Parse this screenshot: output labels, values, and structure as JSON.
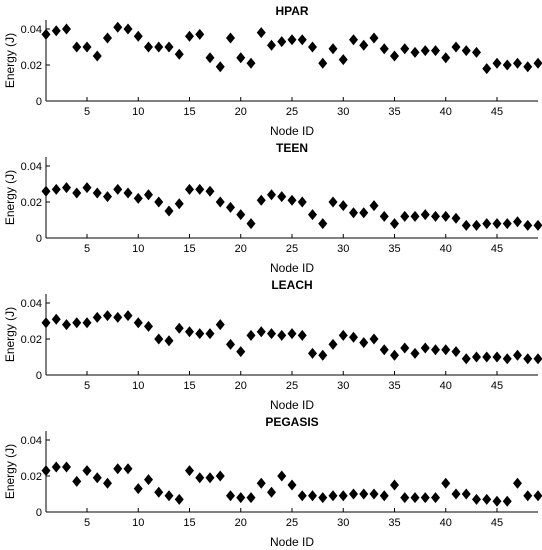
{
  "chart_data": [
    {
      "type": "scatter",
      "title": "HPAR",
      "xlabel": "Node ID",
      "ylabel": "Energy (J)",
      "xlim": [
        1,
        49
      ],
      "ylim": [
        0,
        0.045
      ],
      "xticks": [
        5,
        10,
        15,
        20,
        25,
        30,
        35,
        40,
        45
      ],
      "yticks": [
        0,
        0.02,
        0.04
      ],
      "ytick_labels": [
        "0",
        "0.02",
        "0.04"
      ],
      "marker": "diamond",
      "color": "#000000",
      "x": [
        1,
        2,
        3,
        4,
        5,
        6,
        7,
        8,
        9,
        10,
        11,
        12,
        13,
        14,
        15,
        16,
        17,
        18,
        19,
        20,
        21,
        22,
        23,
        24,
        25,
        26,
        27,
        28,
        29,
        30,
        31,
        32,
        33,
        34,
        35,
        36,
        37,
        38,
        39,
        40,
        41,
        42,
        43,
        44,
        45,
        46,
        47,
        48,
        49
      ],
      "y": [
        0.037,
        0.039,
        0.04,
        0.03,
        0.03,
        0.025,
        0.035,
        0.041,
        0.04,
        0.036,
        0.03,
        0.03,
        0.03,
        0.026,
        0.036,
        0.037,
        0.024,
        0.019,
        0.035,
        0.024,
        0.021,
        0.038,
        0.031,
        0.033,
        0.034,
        0.034,
        0.03,
        0.021,
        0.029,
        0.023,
        0.034,
        0.031,
        0.035,
        0.029,
        0.025,
        0.029,
        0.027,
        0.028,
        0.028,
        0.024,
        0.03,
        0.028,
        0.027,
        0.018,
        0.021,
        0.02,
        0.021,
        0.019,
        0.021
      ]
    },
    {
      "type": "scatter",
      "title": "TEEN",
      "xlabel": "Node ID",
      "ylabel": "Energy (J)",
      "xlim": [
        1,
        49
      ],
      "ylim": [
        0,
        0.045
      ],
      "xticks": [
        5,
        10,
        15,
        20,
        25,
        30,
        35,
        40,
        45
      ],
      "yticks": [
        0,
        0.02,
        0.04
      ],
      "ytick_labels": [
        "0",
        "0.02",
        "0.04"
      ],
      "marker": "diamond",
      "color": "#000000",
      "x": [
        1,
        2,
        3,
        4,
        5,
        6,
        7,
        8,
        9,
        10,
        11,
        12,
        13,
        14,
        15,
        16,
        17,
        18,
        19,
        20,
        21,
        22,
        23,
        24,
        25,
        26,
        27,
        28,
        29,
        30,
        31,
        32,
        33,
        34,
        35,
        36,
        37,
        38,
        39,
        40,
        41,
        42,
        43,
        44,
        45,
        46,
        47,
        48,
        49
      ],
      "y": [
        0.026,
        0.027,
        0.028,
        0.025,
        0.028,
        0.025,
        0.023,
        0.027,
        0.025,
        0.022,
        0.024,
        0.02,
        0.015,
        0.019,
        0.027,
        0.027,
        0.026,
        0.02,
        0.017,
        0.013,
        0.008,
        0.021,
        0.024,
        0.023,
        0.021,
        0.02,
        0.013,
        0.008,
        0.02,
        0.018,
        0.014,
        0.014,
        0.018,
        0.012,
        0.008,
        0.012,
        0.012,
        0.013,
        0.012,
        0.012,
        0.011,
        0.007,
        0.007,
        0.008,
        0.008,
        0.008,
        0.009,
        0.007,
        0.007
      ]
    },
    {
      "type": "scatter",
      "title": "LEACH",
      "xlabel": "Node ID",
      "ylabel": "Energy (J)",
      "xlim": [
        1,
        49
      ],
      "ylim": [
        0,
        0.045
      ],
      "xticks": [
        5,
        10,
        15,
        20,
        25,
        30,
        35,
        40,
        45
      ],
      "yticks": [
        0,
        0.02,
        0.04
      ],
      "ytick_labels": [
        "0",
        "0.02",
        "0.04"
      ],
      "marker": "diamond",
      "color": "#000000",
      "x": [
        1,
        2,
        3,
        4,
        5,
        6,
        7,
        8,
        9,
        10,
        11,
        12,
        13,
        14,
        15,
        16,
        17,
        18,
        19,
        20,
        21,
        22,
        23,
        24,
        25,
        26,
        27,
        28,
        29,
        30,
        31,
        32,
        33,
        34,
        35,
        36,
        37,
        38,
        39,
        40,
        41,
        42,
        43,
        44,
        45,
        46,
        47,
        48,
        49
      ],
      "y": [
        0.029,
        0.031,
        0.028,
        0.029,
        0.029,
        0.032,
        0.033,
        0.032,
        0.033,
        0.029,
        0.027,
        0.02,
        0.019,
        0.026,
        0.024,
        0.023,
        0.023,
        0.028,
        0.017,
        0.013,
        0.022,
        0.024,
        0.023,
        0.022,
        0.023,
        0.022,
        0.012,
        0.011,
        0.017,
        0.022,
        0.021,
        0.018,
        0.02,
        0.014,
        0.011,
        0.015,
        0.012,
        0.015,
        0.014,
        0.014,
        0.013,
        0.009,
        0.01,
        0.01,
        0.01,
        0.009,
        0.011,
        0.009,
        0.009
      ]
    },
    {
      "type": "scatter",
      "title": "PEGASIS",
      "xlabel": "Node ID",
      "ylabel": "Energy (J)",
      "xlim": [
        1,
        49
      ],
      "ylim": [
        0,
        0.045
      ],
      "xticks": [
        5,
        10,
        15,
        20,
        25,
        30,
        35,
        40,
        45
      ],
      "yticks": [
        0,
        0.02,
        0.04
      ],
      "ytick_labels": [
        "0",
        "0.02",
        "0.04"
      ],
      "marker": "diamond",
      "color": "#000000",
      "x": [
        1,
        2,
        3,
        4,
        5,
        6,
        7,
        8,
        9,
        10,
        11,
        12,
        13,
        14,
        15,
        16,
        17,
        18,
        19,
        20,
        21,
        22,
        23,
        24,
        25,
        26,
        27,
        28,
        29,
        30,
        31,
        32,
        33,
        34,
        35,
        36,
        37,
        38,
        39,
        40,
        41,
        42,
        43,
        44,
        45,
        46,
        47,
        48,
        49
      ],
      "y": [
        0.023,
        0.025,
        0.025,
        0.017,
        0.023,
        0.019,
        0.016,
        0.024,
        0.024,
        0.013,
        0.018,
        0.011,
        0.009,
        0.007,
        0.023,
        0.019,
        0.019,
        0.02,
        0.009,
        0.008,
        0.008,
        0.016,
        0.011,
        0.02,
        0.015,
        0.009,
        0.009,
        0.008,
        0.009,
        0.009,
        0.01,
        0.01,
        0.01,
        0.009,
        0.015,
        0.008,
        0.008,
        0.008,
        0.008,
        0.016,
        0.01,
        0.01,
        0.007,
        0.007,
        0.006,
        0.006,
        0.016,
        0.009,
        0.009
      ]
    }
  ]
}
